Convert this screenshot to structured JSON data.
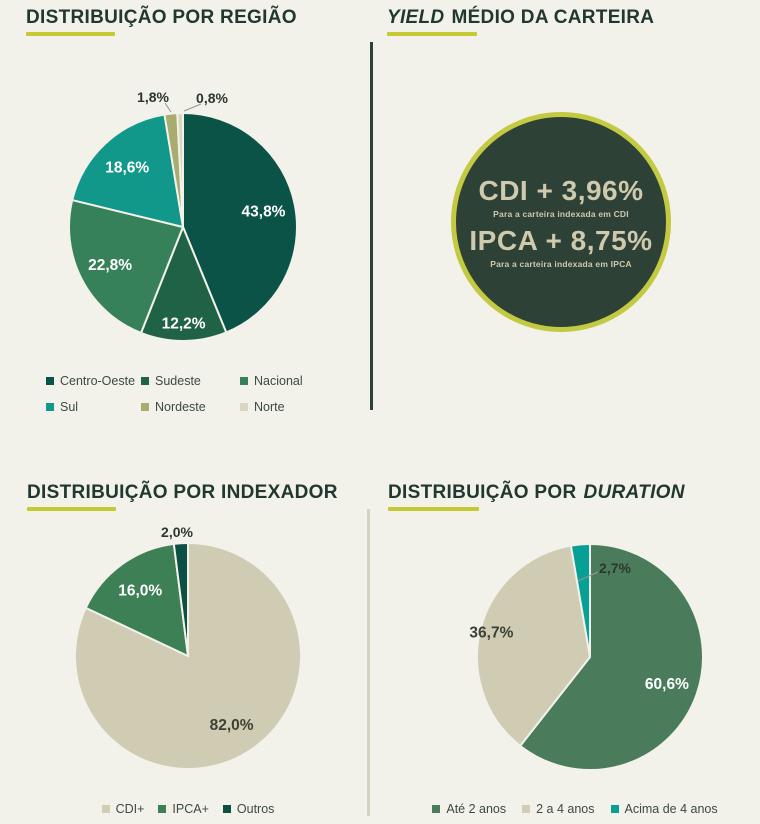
{
  "theme": {
    "background": "#f2f1ea",
    "title_color": "#21382f",
    "accent_underline": "#c5c932",
    "divider_dark": "#2c4137",
    "divider_light": "#d5d2bd",
    "legend_text": "#3e4a41",
    "leader_line": "#96968a"
  },
  "sections": {
    "region": {
      "title": "DISTRIBUIÇÃO POR REGIÃO"
    },
    "yield": {
      "title_italic": "YIELD",
      "title_rest": "MÉDIO DA CARTEIRA",
      "badge": {
        "cdi_value": "CDI + 3,96%",
        "cdi_caption": "Para a carteira indexada em CDI",
        "ipca_value": "IPCA + 8,75%",
        "ipca_caption": "Para a carteira indexada em IPCA",
        "circle_color": "#2d4136",
        "ring_color": "#c3ca41",
        "text_color": "#cfc9ad"
      }
    },
    "indexador": {
      "title": "DISTRIBUIÇÃO POR INDEXADOR"
    },
    "duration": {
      "title_prefix": "DISTRIBUIÇÃO POR",
      "title_italic": "DURATION"
    }
  },
  "chart_data": [
    {
      "type": "pie",
      "title": "DISTRIBUIÇÃO POR REGIÃO",
      "labels": [
        "Centro-Oeste",
        "Sudeste",
        "Nacional",
        "Sul",
        "Nordeste",
        "Norte"
      ],
      "values": [
        43.8,
        12.2,
        22.8,
        18.6,
        1.8,
        0.8
      ],
      "value_labels": [
        "43,8%",
        "12,2%",
        "22,8%",
        "18,6%",
        "1,8%",
        "0,8%"
      ],
      "colors": [
        "#0c5347",
        "#206245",
        "#37815a",
        "#12988a",
        "#a8ac6f",
        "#d9d6bf"
      ],
      "value_label_colors": [
        "#ffffff",
        "#ffffff",
        "#ffffff",
        "#ffffff",
        "#2b372e",
        "#2b372e"
      ],
      "legend_position": "bottom",
      "start_angle_deg": 0,
      "direction": "clockwise"
    },
    {
      "type": "table",
      "title": "YIELD MÉDIO DA CARTEIRA",
      "rows": [
        [
          "CDI + 3,96%",
          "Para a carteira indexada em CDI"
        ],
        [
          "IPCA + 8,75%",
          "Para a carteira indexada em IPCA"
        ]
      ]
    },
    {
      "type": "pie",
      "title": "DISTRIBUIÇÃO POR INDEXADOR",
      "labels": [
        "CDI+",
        "IPCA+",
        "Outros"
      ],
      "values": [
        82.0,
        16.0,
        2.0
      ],
      "value_labels": [
        "82,0%",
        "16,0%",
        "2,0%"
      ],
      "colors": [
        "#cfccb3",
        "#3e8056",
        "#0b4f45"
      ],
      "value_label_colors": [
        "#3a4136",
        "#ffffff",
        "#2b372e"
      ],
      "legend_position": "bottom",
      "start_angle_deg": 0,
      "direction": "clockwise"
    },
    {
      "type": "pie",
      "title": "DISTRIBUIÇÃO POR DURATION",
      "labels": [
        "Até 2 anos",
        "2 a 4 anos",
        "Acima de 4 anos"
      ],
      "values": [
        60.6,
        36.7,
        2.7
      ],
      "value_labels": [
        "60,6%",
        "36,7%",
        "2,7%"
      ],
      "colors": [
        "#4a7c5b",
        "#cfccb3",
        "#07a096"
      ],
      "value_label_colors": [
        "#ffffff",
        "#3a4136",
        "#2b372e"
      ],
      "legend_position": "bottom",
      "start_angle_deg": 0,
      "direction": "clockwise"
    }
  ]
}
